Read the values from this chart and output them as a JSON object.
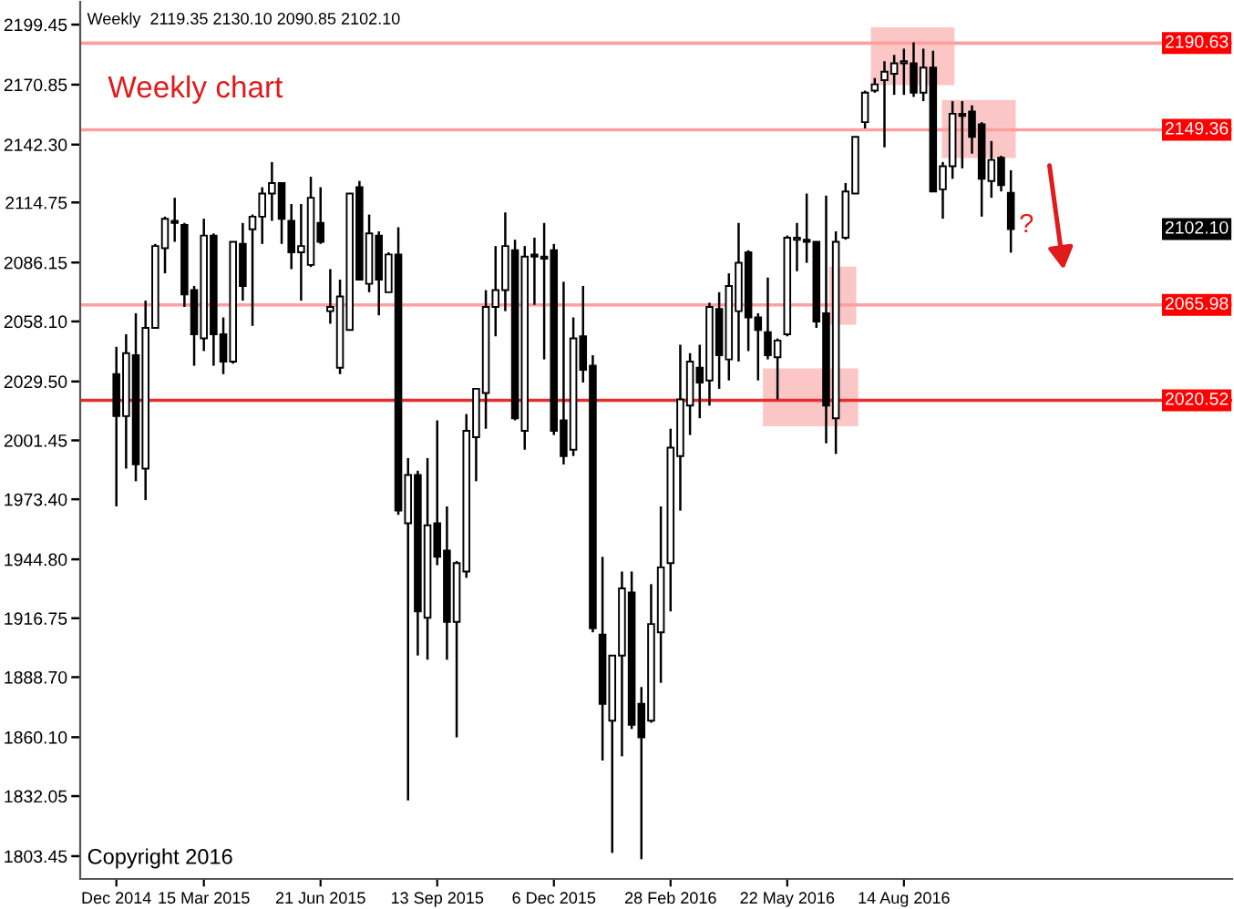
{
  "chart_data": {
    "type": "candlestick",
    "title": "Weekly  2119.35 2130.10 2090.85 2102.10",
    "categories": [
      "Dec 2014",
      null,
      null,
      null,
      null,
      null,
      null,
      null,
      null,
      "15 Mar 2015",
      null,
      null,
      null,
      null,
      null,
      null,
      null,
      null,
      null,
      null,
      null,
      "21 Jun 2015",
      null,
      null,
      null,
      null,
      null,
      null,
      null,
      null,
      null,
      null,
      null,
      "13 Sep 2015",
      null,
      null,
      null,
      null,
      null,
      null,
      null,
      null,
      null,
      null,
      null,
      "6 Dec 2015",
      null,
      null,
      null,
      null,
      null,
      null,
      null,
      null,
      null,
      null,
      null,
      "28 Feb 2016",
      null,
      null,
      null,
      null,
      null,
      null,
      null,
      null,
      null,
      null,
      null,
      "22 May 2016",
      null,
      null,
      null,
      null,
      null,
      null,
      null,
      null,
      null,
      null,
      null,
      "14 Aug 2016",
      null,
      null,
      null,
      null,
      null,
      null,
      null,
      null,
      null,
      null,
      null
    ],
    "ohlc": [
      [
        2033,
        2046,
        1970,
        2013
      ],
      [
        2013,
        2052,
        1988,
        2043
      ],
      [
        2042,
        2062,
        1982,
        1990
      ],
      [
        1988,
        2068,
        1973,
        2055
      ],
      [
        2055,
        2095,
        2055,
        2094
      ],
      [
        2093,
        2108,
        2081,
        2107
      ],
      [
        2106,
        2117,
        2096,
        2105
      ],
      [
        2104,
        2105,
        2065,
        2071
      ],
      [
        2073,
        2075,
        2037,
        2052
      ],
      [
        2050,
        2107,
        2044,
        2099
      ],
      [
        2099,
        2100,
        2037,
        2052
      ],
      [
        2052,
        2060,
        2033,
        2039
      ],
      [
        2039,
        2096,
        2038,
        2096
      ],
      [
        2095,
        2105,
        2068,
        2075
      ],
      [
        2102,
        2109,
        2056,
        2108
      ],
      [
        2108,
        2122,
        2095,
        2119
      ],
      [
        2119,
        2134,
        2106,
        2124
      ],
      [
        2124,
        2124,
        2095,
        2107
      ],
      [
        2106,
        2114,
        2083,
        2091
      ],
      [
        2091,
        2114,
        2068,
        2094
      ],
      [
        2085,
        2127,
        2084,
        2117
      ],
      [
        2105,
        2122,
        2095,
        2096
      ],
      [
        2063,
        2083,
        2057,
        2065
      ],
      [
        2036,
        2078,
        2033,
        2070
      ],
      [
        2054,
        2119,
        2054,
        2119
      ],
      [
        2122,
        2125,
        2078,
        2078
      ],
      [
        2076,
        2109,
        2072,
        2100
      ],
      [
        2099,
        2101,
        2061,
        2078
      ],
      [
        2072,
        2091,
        2072,
        2090
      ],
      [
        2090,
        2103,
        1966,
        1968
      ],
      [
        1962,
        1993,
        1830,
        1985
      ],
      [
        1985,
        1987,
        1899,
        1920
      ],
      [
        1917,
        1993,
        1897,
        1961
      ],
      [
        1962,
        2011,
        1942,
        1946
      ],
      [
        1949,
        1970,
        1897,
        1915
      ],
      [
        1915,
        1944,
        1860,
        1943
      ],
      [
        1939,
        2014,
        1936,
        2006
      ],
      [
        2003,
        2026,
        1982,
        2026
      ],
      [
        2024,
        2073,
        2007,
        2065
      ],
      [
        2065,
        2094,
        2051,
        2073
      ],
      [
        2073,
        2110,
        2063,
        2094
      ],
      [
        2092,
        2097,
        2011,
        2012
      ],
      [
        2006,
        2094,
        1997,
        2089
      ],
      [
        2090,
        2098,
        2066,
        2089
      ],
      [
        2089,
        2105,
        2040,
        2088
      ],
      [
        2092,
        2095,
        2004,
        2006
      ],
      [
        2011,
        2077,
        1990,
        1994
      ],
      [
        1997,
        2060,
        1994,
        2050
      ],
      [
        2051,
        2075,
        2029,
        2035
      ],
      [
        2037,
        2042,
        1910,
        1912
      ],
      [
        1909,
        1946,
        1849,
        1876
      ],
      [
        1868,
        1899,
        1805,
        1899
      ],
      [
        1899,
        1939,
        1851,
        1931
      ],
      [
        1929,
        1939,
        1864,
        1866
      ],
      [
        1876,
        1884,
        1802,
        1860
      ],
      [
        1868,
        1933,
        1867,
        1914
      ],
      [
        1910,
        1970,
        1886,
        1941
      ],
      [
        1943,
        2007,
        1920,
        1998
      ],
      [
        1994,
        2047,
        1968,
        2021
      ],
      [
        2018,
        2043,
        2004,
        2039
      ],
      [
        2036,
        2047,
        2012,
        2029
      ],
      [
        2030,
        2067,
        2018,
        2065
      ],
      [
        2064,
        2072,
        2026,
        2042
      ],
      [
        2040,
        2081,
        2030,
        2075
      ],
      [
        2063,
        2105,
        2039,
        2086
      ],
      [
        2091,
        2092,
        2044,
        2060
      ],
      [
        2060,
        2062,
        2030,
        2054
      ],
      [
        2053,
        2079,
        2040,
        2042
      ],
      [
        2041,
        2050,
        2021,
        2049
      ],
      [
        2052,
        2099,
        2051,
        2098
      ],
      [
        2097,
        2105,
        2082,
        2098
      ],
      [
        2097,
        2119,
        2086,
        2096
      ],
      [
        2096,
        2096,
        2055,
        2058
      ],
      [
        2062,
        2118,
        2000,
        2018
      ],
      [
        2012,
        2101,
        1995,
        2096
      ],
      [
        2098,
        2124,
        2097,
        2120
      ],
      [
        2119,
        2146,
        2119,
        2146
      ],
      [
        2153,
        2168,
        2150,
        2167
      ],
      [
        2168,
        2174,
        2167,
        2171
      ],
      [
        2173,
        2182,
        2141,
        2177
      ],
      [
        2176,
        2185,
        2166,
        2181
      ],
      [
        2181,
        2188,
        2166,
        2182
      ],
      [
        2181,
        2191,
        2165,
        2167
      ],
      [
        2167,
        2188,
        2163,
        2179
      ],
      [
        2179,
        2187,
        2120,
        2120
      ],
      [
        2121,
        2134,
        2107,
        2132
      ],
      [
        2132,
        2163,
        2126,
        2157
      ],
      [
        2157,
        2163,
        2131,
        2156
      ],
      [
        2158,
        2161,
        2138,
        2146
      ],
      [
        2152,
        2153,
        2108,
        2126
      ],
      [
        2125,
        2144,
        2117,
        2135
      ],
      [
        2136,
        2137,
        2120,
        2123
      ],
      [
        2119.35,
        2130.1,
        2090.85,
        2102.1
      ]
    ],
    "color": "#000000",
    "ylim": [
      1792.6,
      2210.3
    ],
    "yticks": [
      1803.45,
      1832.05,
      {
        "value": 1860.1,
        "label": "1860.10"
      },
      {
        "value": 1888.7,
        "label": "1888.70"
      },
      1916.75,
      {
        "value": 1944.8,
        "label": "1944.80"
      },
      {
        "value": 1973.4,
        "label": "1973.40"
      },
      2001.45,
      {
        "value": 2029.5,
        "label": "2029.50"
      },
      {
        "value": 2058.1,
        "label": "2058.10"
      },
      2086.15,
      2114.75,
      {
        "value": 2142.3,
        "label": "2142.30"
      },
      2170.85,
      2199.45
    ],
    "ref_lines": [
      {
        "axis": "y",
        "value": 2190.63,
        "label": "2190.63",
        "color": "#ff9f9f"
      },
      {
        "axis": "y",
        "value": 2149.36,
        "label": "2149.36",
        "color": "#ff9f9f"
      },
      {
        "axis": "y",
        "value": 2065.98,
        "label": "2065.98",
        "color": "#ff9f9f"
      },
      {
        "axis": "y",
        "value": 2020.52,
        "label": "2020.52",
        "color": "#e62e2e"
      }
    ],
    "annotations": [
      "Weekly chart",
      "?",
      "Copyright 2016",
      "2102.10"
    ]
  }
}
